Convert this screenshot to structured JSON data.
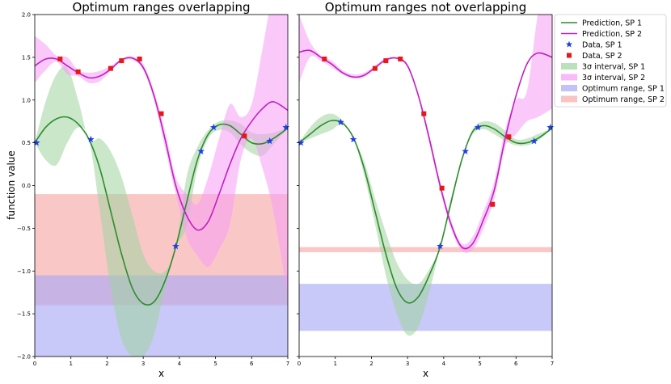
{
  "chart_data": {
    "type": "line",
    "ylabel": "function value",
    "xlim": [
      0,
      7
    ],
    "ylim": [
      -2,
      2
    ],
    "x_ticks": [
      0,
      1,
      2,
      3,
      4,
      5,
      6,
      7
    ],
    "y_ticks": [
      -2.0,
      -1.5,
      -1.0,
      -0.5,
      0.0,
      0.5,
      1.0,
      1.5,
      2.0
    ],
    "legend": {
      "position": "outside-right",
      "entries": [
        {
          "label": "Prediction, SP 1",
          "kind": "line",
          "color": "#2e8b2e"
        },
        {
          "label": "Prediction, SP 2",
          "kind": "line",
          "color": "#c020c0"
        },
        {
          "label": "Data, SP 1",
          "kind": "star",
          "color": "#1f3fe6"
        },
        {
          "label": "Data, SP 2",
          "kind": "square",
          "color": "#e81818"
        },
        {
          "label": "3σ interval, SP 1",
          "kind": "patch",
          "color": "#9ed39e"
        },
        {
          "label": "3σ interval, SP 2",
          "kind": "patch",
          "color": "#f59cf5"
        },
        {
          "label": "Optimum range, SP 1",
          "kind": "patch",
          "color": "#a8a8f5"
        },
        {
          "label": "Optimum range, SP 2",
          "kind": "patch",
          "color": "#f7a9a9"
        }
      ]
    },
    "panels": [
      {
        "title": "Optimum ranges overlapping",
        "xlabel": "x",
        "series": [
          {
            "name": "Prediction, SP 1",
            "x": [
              0,
              0.3,
              0.6,
              0.9,
              1.2,
              1.5,
              1.8,
              2.1,
              2.4,
              2.7,
              3.0,
              3.3,
              3.6,
              3.9,
              4.2,
              4.5,
              4.8,
              5.1,
              5.4,
              5.7,
              6.0,
              6.3,
              6.6,
              7.0
            ],
            "y": [
              0.5,
              0.68,
              0.78,
              0.8,
              0.72,
              0.54,
              0.2,
              -0.3,
              -0.8,
              -1.2,
              -1.38,
              -1.36,
              -1.12,
              -0.72,
              -0.2,
              0.3,
              0.6,
              0.71,
              0.7,
              0.6,
              0.5,
              0.49,
              0.55,
              0.67
            ]
          },
          {
            "name": "Prediction, SP 2",
            "x": [
              0,
              0.3,
              0.6,
              0.9,
              1.2,
              1.5,
              1.8,
              2.1,
              2.4,
              2.7,
              3.0,
              3.3,
              3.6,
              3.9,
              4.2,
              4.5,
              4.8,
              5.1,
              5.4,
              5.7,
              6.0,
              6.3,
              6.6,
              7.0
            ],
            "y": [
              1.4,
              1.48,
              1.48,
              1.4,
              1.32,
              1.26,
              1.28,
              1.36,
              1.47,
              1.49,
              1.38,
              1.05,
              0.55,
              0.0,
              -0.35,
              -0.52,
              -0.42,
              -0.1,
              0.25,
              0.55,
              0.75,
              0.9,
              0.98,
              0.88
            ]
          },
          {
            "name": "3σ interval, SP 1",
            "x": [
              0,
              0.3,
              0.6,
              0.9,
              1.2,
              1.5,
              1.8,
              2.1,
              2.4,
              2.7,
              3.0,
              3.3,
              3.6,
              3.9,
              4.2,
              4.5,
              4.8,
              5.1,
              5.4,
              5.7,
              6.0,
              6.3,
              6.6,
              7.0
            ],
            "lower": [
              0.5,
              0.3,
              0.24,
              0.5,
              0.68,
              0.54,
              -0.3,
              -1.2,
              -1.8,
              -2.0,
              -2.0,
              -1.75,
              -1.2,
              -0.72,
              -0.48,
              0.2,
              0.55,
              0.65,
              0.62,
              0.48,
              0.38,
              0.35,
              0.48,
              0.67
            ],
            "upper": [
              0.5,
              0.98,
              1.3,
              1.38,
              1.0,
              0.54,
              0.55,
              0.4,
              0.1,
              -0.35,
              -0.8,
              -1.0,
              -1.0,
              -0.72,
              0.1,
              0.45,
              0.65,
              0.75,
              0.76,
              0.72,
              0.62,
              0.6,
              0.62,
              0.67
            ]
          },
          {
            "name": "3σ interval, SP 2",
            "x": [
              0,
              0.3,
              0.6,
              0.9,
              1.2,
              1.5,
              1.8,
              2.1,
              2.4,
              2.7,
              3.0,
              3.3,
              3.6,
              3.9,
              4.2,
              4.5,
              4.8,
              5.1,
              5.4,
              5.7,
              6.0,
              6.3,
              6.6,
              7.0
            ],
            "lower": [
              1.2,
              1.35,
              1.45,
              1.3,
              1.28,
              1.2,
              1.22,
              1.34,
              1.45,
              1.47,
              1.35,
              1.0,
              0.45,
              -0.1,
              -0.6,
              -0.82,
              -0.95,
              -0.75,
              -0.45,
              0.3,
              0.55,
              0.2,
              -0.3,
              -1.3
            ],
            "upper": [
              1.75,
              1.65,
              1.52,
              1.5,
              1.35,
              1.32,
              1.34,
              1.4,
              1.48,
              1.51,
              1.42,
              1.1,
              0.65,
              0.1,
              -0.1,
              -0.22,
              0.1,
              0.55,
              0.95,
              0.8,
              0.95,
              1.6,
              2.3,
              3.0
            ]
          },
          {
            "name": "Data, SP 1",
            "x": [
              0.05,
              1.55,
              3.9,
              4.6,
              4.95,
              6.5,
              6.95
            ],
            "y": [
              0.5,
              0.54,
              -0.71,
              0.4,
              0.68,
              0.52,
              0.68
            ]
          },
          {
            "name": "Data, SP 2",
            "x": [
              0.7,
              1.2,
              2.1,
              2.4,
              2.9,
              3.5,
              5.8
            ],
            "y": [
              1.48,
              1.33,
              1.37,
              1.46,
              1.48,
              0.84,
              0.58
            ]
          }
        ],
        "optimum_ranges": [
          {
            "name": "Optimum range, SP 2",
            "ymin": -1.4,
            "ymax": -0.1
          },
          {
            "name": "Optimum range, SP 1",
            "ymin": -2.0,
            "ymax": -1.05
          }
        ]
      },
      {
        "title": "Optimum ranges not overlapping",
        "xlabel": "x",
        "series": [
          {
            "name": "Prediction, SP 1",
            "x": [
              0,
              0.3,
              0.6,
              0.9,
              1.2,
              1.5,
              1.8,
              2.1,
              2.4,
              2.7,
              3.0,
              3.3,
              3.6,
              3.9,
              4.2,
              4.5,
              4.8,
              5.1,
              5.4,
              5.7,
              6.0,
              6.3,
              6.6,
              7.0
            ],
            "y": [
              0.5,
              0.6,
              0.7,
              0.76,
              0.73,
              0.56,
              0.2,
              -0.3,
              -0.8,
              -1.2,
              -1.37,
              -1.3,
              -1.05,
              -0.72,
              -0.2,
              0.3,
              0.63,
              0.7,
              0.66,
              0.57,
              0.5,
              0.5,
              0.55,
              0.67
            ]
          },
          {
            "name": "Prediction, SP 2",
            "x": [
              0,
              0.3,
              0.6,
              0.9,
              1.2,
              1.5,
              1.8,
              2.1,
              2.4,
              2.7,
              3.0,
              3.3,
              3.6,
              3.9,
              4.2,
              4.5,
              4.8,
              5.1,
              5.4,
              5.7,
              6.0,
              6.3,
              6.6,
              7.0
            ],
            "y": [
              1.56,
              1.58,
              1.5,
              1.42,
              1.32,
              1.27,
              1.29,
              1.38,
              1.47,
              1.49,
              1.4,
              1.05,
              0.55,
              0.0,
              -0.45,
              -0.72,
              -0.68,
              -0.4,
              -0.05,
              0.55,
              1.05,
              1.42,
              1.55,
              1.5
            ]
          },
          {
            "name": "3σ interval, SP 1",
            "x": [
              0,
              0.3,
              0.6,
              0.9,
              1.2,
              1.5,
              1.8,
              2.1,
              2.4,
              2.7,
              3.0,
              3.3,
              3.6,
              3.9,
              4.2,
              4.5,
              4.8,
              5.1,
              5.4,
              5.7,
              6.0,
              6.3,
              6.6,
              7.0
            ],
            "lower": [
              0.5,
              0.55,
              0.6,
              0.65,
              0.72,
              0.56,
              0.12,
              -0.45,
              -1.05,
              -1.5,
              -1.75,
              -1.65,
              -1.25,
              -0.72,
              -0.25,
              0.3,
              0.6,
              0.66,
              0.6,
              0.52,
              0.47,
              0.47,
              0.52,
              0.67
            ],
            "upper": [
              0.5,
              0.68,
              0.8,
              0.84,
              0.76,
              0.56,
              0.28,
              -0.15,
              -0.55,
              -0.9,
              -1.1,
              -1.15,
              -0.98,
              -0.72,
              -0.15,
              0.3,
              0.66,
              0.75,
              0.73,
              0.64,
              0.54,
              0.55,
              0.6,
              0.67
            ]
          },
          {
            "name": "3σ interval, SP 2",
            "x": [
              0,
              0.3,
              0.6,
              0.9,
              1.2,
              1.5,
              1.8,
              2.1,
              2.4,
              2.7,
              3.0,
              3.3,
              3.6,
              3.9,
              4.2,
              4.5,
              4.8,
              5.1,
              5.4,
              5.7,
              6.0,
              6.3,
              6.6,
              7.0
            ],
            "lower": [
              1.2,
              1.5,
              1.46,
              1.38,
              1.3,
              1.25,
              1.27,
              1.36,
              1.46,
              1.48,
              1.38,
              1.03,
              0.5,
              -0.05,
              -0.5,
              -0.76,
              -0.75,
              -0.5,
              -0.15,
              0.45,
              0.6,
              0.75,
              0.8,
              0.9
            ],
            "upper": [
              2.0,
              1.68,
              1.52,
              1.46,
              1.35,
              1.3,
              1.32,
              1.4,
              1.49,
              1.5,
              1.42,
              1.08,
              0.6,
              0.05,
              -0.4,
              -0.68,
              -0.6,
              -0.3,
              0.05,
              0.65,
              1.0,
              1.1,
              2.0,
              3.0
            ]
          },
          {
            "name": "Data, SP 1",
            "x": [
              0.05,
              1.15,
              1.5,
              3.9,
              4.6,
              4.95,
              6.5,
              6.95
            ],
            "y": [
              0.5,
              0.74,
              0.54,
              -0.71,
              0.4,
              0.68,
              0.52,
              0.68
            ]
          },
          {
            "name": "Data, SP 2",
            "x": [
              0.7,
              2.1,
              2.4,
              2.8,
              3.45,
              3.95,
              5.35,
              5.8
            ],
            "y": [
              1.48,
              1.37,
              1.46,
              1.48,
              0.84,
              -0.03,
              -0.22,
              0.57
            ]
          }
        ],
        "optimum_ranges": [
          {
            "name": "Optimum range, SP 2",
            "ymin": -0.78,
            "ymax": -0.72
          },
          {
            "name": "Optimum range, SP 1",
            "ymin": -1.7,
            "ymax": -1.15
          }
        ]
      }
    ]
  }
}
